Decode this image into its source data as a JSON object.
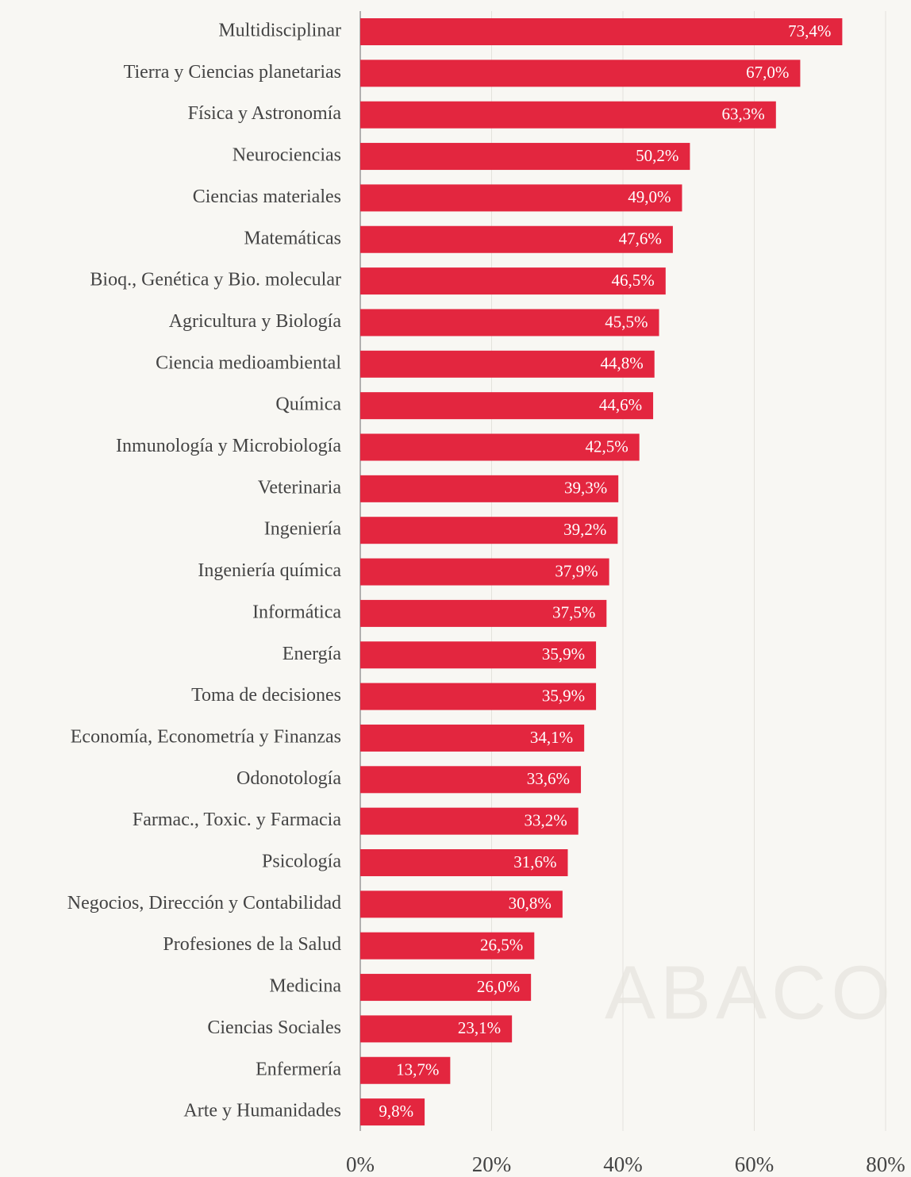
{
  "chart_data": {
    "type": "barh",
    "categories": [
      "Multidisciplinar",
      "Tierra y Ciencias planetarias",
      "Física y Astronomía",
      "Neurociencias",
      "Ciencias materiales",
      "Matemáticas",
      "Bioq., Genética y Bio. molecular",
      "Agricultura y Biología",
      "Ciencia medioambiental",
      "Química",
      "Inmunología y Microbiología",
      "Veterinaria",
      "Ingeniería",
      "Ingeniería química",
      "Informática",
      "Energía",
      "Toma de decisiones",
      "Economía, Econometría y Finanzas",
      "Odonotología",
      "Farmac., Toxic. y Farmacia",
      "Psicología",
      "Negocios, Dirección y Contabilidad",
      "Profesiones de la Salud",
      "Medicina",
      "Ciencias Sociales",
      "Enfermería",
      "Arte y Humanidades"
    ],
    "values": [
      73.4,
      67.0,
      63.3,
      50.2,
      49.0,
      47.6,
      46.5,
      45.5,
      44.8,
      44.6,
      42.5,
      39.3,
      39.2,
      37.9,
      37.5,
      35.9,
      35.9,
      34.1,
      33.6,
      33.2,
      31.6,
      30.8,
      26.5,
      26.0,
      23.1,
      13.7,
      9.8
    ],
    "value_labels": [
      "73,4%",
      "67,0%",
      "63,3%",
      "50,2%",
      "49,0%",
      "47,6%",
      "46,5%",
      "45,5%",
      "44,8%",
      "44,6%",
      "42,5%",
      "39,3%",
      "39,2%",
      "37,9%",
      "37,5%",
      "35,9%",
      "35,9%",
      "34,1%",
      "33,6%",
      "33,2%",
      "31,6%",
      "30,8%",
      "26,5%",
      "26,0%",
      "23,1%",
      "13,7%",
      "9,8%"
    ],
    "color": "#e3263f",
    "xlim": [
      0,
      80
    ],
    "xticks": [
      {
        "value": 0,
        "label": "0%"
      },
      {
        "value": 20,
        "label": "20%"
      },
      {
        "value": 40,
        "label": "40%"
      },
      {
        "value": 60,
        "label": "60%"
      },
      {
        "value": 80,
        "label": "80%"
      }
    ],
    "grid": true,
    "watermark": "ABACO"
  }
}
